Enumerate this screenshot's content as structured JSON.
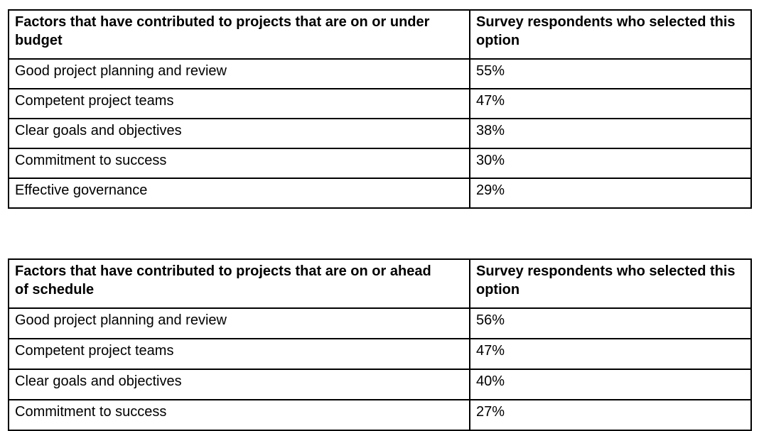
{
  "page": {
    "background_color": "#ffffff",
    "text_color": "#000000",
    "border_color": "#000000"
  },
  "tables": [
    {
      "name": "budget-factors-table",
      "header": {
        "factor_lines": [
          "Factors that have contributed to projects that are on or under",
          "budget"
        ],
        "respondents_lines": [
          "Survey respondents who selected this",
          "option"
        ]
      },
      "rows": [
        {
          "factor": "Good project planning and review",
          "value": "55%"
        },
        {
          "factor": "Competent project teams",
          "value": "47%"
        },
        {
          "factor": "Clear goals and objectives",
          "value": "38%"
        },
        {
          "factor": "Commitment to success",
          "value": "30%"
        },
        {
          "factor": "Effective governance",
          "value": "29%"
        }
      ]
    },
    {
      "name": "schedule-factors-table",
      "header": {
        "factor_lines": [
          "Factors that have contributed to projects that are on or ahead",
          "of schedule"
        ],
        "respondents_lines": [
          "Survey respondents who selected this",
          "option"
        ]
      },
      "rows": [
        {
          "factor": "Good project planning and review",
          "value": "56%"
        },
        {
          "factor": "Competent project teams",
          "value": "47%"
        },
        {
          "factor": "Clear goals and objectives",
          "value": "40%"
        },
        {
          "factor": "Commitment to success",
          "value": "27%"
        }
      ]
    }
  ]
}
